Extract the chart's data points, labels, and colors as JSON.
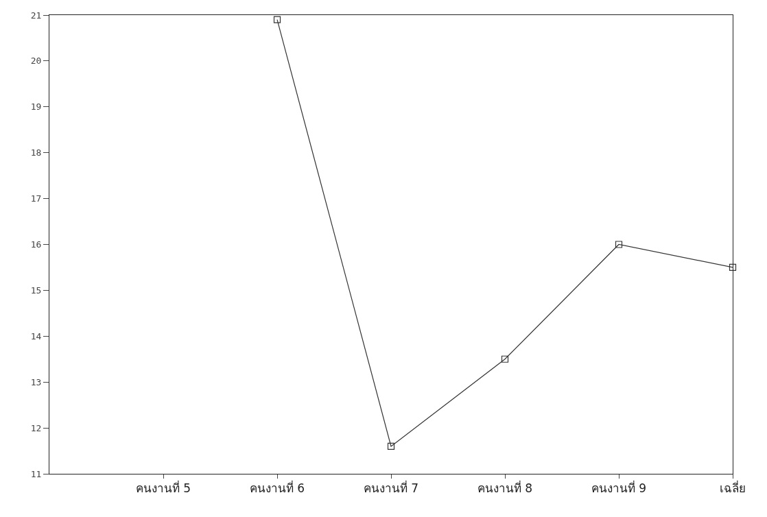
{
  "chart_data": {
    "type": "line",
    "categories": [
      null,
      "คนงานที่ 5",
      "คนงานที่ 6",
      "คนงานที่ 7",
      "คนงานที่ 8",
      "คนงานที่ 9",
      "เฉลี่ย"
    ],
    "values": [
      null,
      null,
      20.9,
      11.6,
      13.5,
      16.0,
      15.5
    ],
    "color": "#333333",
    "marker": "square",
    "ylim": [
      11,
      21
    ],
    "yticks": [
      11,
      12,
      13,
      14,
      15,
      16,
      17,
      18,
      19,
      20,
      21
    ]
  }
}
